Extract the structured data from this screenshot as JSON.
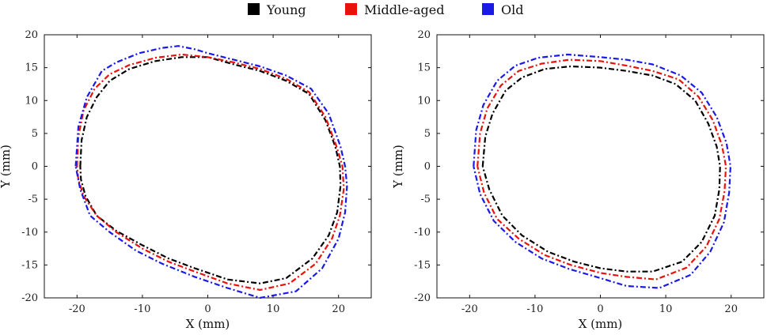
{
  "legend": {
    "items": [
      {
        "label": "Young",
        "color": "#000000"
      },
      {
        "label": "Middle-aged",
        "color": "#e8120c"
      },
      {
        "label": "Old",
        "color": "#1a1ae6"
      }
    ]
  },
  "chart_data": [
    {
      "type": "line",
      "title": "",
      "xlabel": "X (mm)",
      "ylabel": "Y (mm)",
      "xlim": [
        -25,
        25
      ],
      "ylim": [
        -20,
        20
      ],
      "xticks": [
        -20,
        -10,
        0,
        10,
        20
      ],
      "xtick_labels": [
        "-20",
        "-10",
        "0",
        "10",
        "20"
      ],
      "yticks": [
        -20,
        -15,
        -10,
        -5,
        0,
        5,
        10,
        15,
        20
      ],
      "ytick_labels": [
        "-20",
        "-15",
        "-10",
        "-5",
        "0",
        "5",
        "10",
        "15",
        "20"
      ],
      "series": [
        {
          "name": "Young",
          "color": "#000000",
          "x": [
            -19.5,
            -19.3,
            -18.5,
            -17.0,
            -15.0,
            -12.0,
            -8.0,
            -4.0,
            0.0,
            4.0,
            8.0,
            12.0,
            15.5,
            18.0,
            19.5,
            20.2,
            20.3,
            19.8,
            18.5,
            16.0,
            12.0,
            8.0,
            3.0,
            -2.0,
            -6.0,
            -10.0,
            -14.0,
            -17.0,
            -18.7,
            -19.4,
            -19.5
          ],
          "y": [
            0.0,
            4.0,
            7.5,
            10.5,
            13.0,
            14.8,
            16.0,
            16.6,
            16.6,
            15.5,
            14.5,
            13.0,
            11.0,
            7.0,
            3.0,
            0.0,
            -3.0,
            -7.0,
            -10.5,
            -14.0,
            -17.0,
            -17.8,
            -17.2,
            -15.5,
            -14.0,
            -12.0,
            -9.8,
            -7.5,
            -4.5,
            -2.0,
            0.0
          ]
        },
        {
          "name": "Middle-aged",
          "color": "#e8120c",
          "x": [
            -20.0,
            -19.8,
            -19.0,
            -17.3,
            -15.0,
            -12.0,
            -8.0,
            -4.0,
            0.0,
            4.0,
            8.0,
            12.0,
            15.5,
            18.0,
            19.7,
            20.6,
            20.8,
            20.2,
            19.0,
            16.5,
            12.5,
            8.0,
            3.0,
            -2.0,
            -6.0,
            -10.0,
            -14.0,
            -17.0,
            -19.0,
            -19.8,
            -20.0
          ],
          "y": [
            0.0,
            4.5,
            8.5,
            11.8,
            14.0,
            15.4,
            16.5,
            17.0,
            16.6,
            15.8,
            14.8,
            13.3,
            11.3,
            7.5,
            3.0,
            0.0,
            -3.5,
            -7.5,
            -11.0,
            -14.8,
            -17.8,
            -18.8,
            -17.8,
            -16.0,
            -14.5,
            -12.5,
            -10.0,
            -7.5,
            -4.5,
            -2.0,
            0.0
          ]
        },
        {
          "name": "Old",
          "color": "#1a1ae6",
          "x": [
            -20.2,
            -19.8,
            -18.5,
            -16.2,
            -14.0,
            -10.5,
            -7.0,
            -4.5,
            -2.0,
            0.0,
            4.0,
            8.0,
            12.0,
            15.8,
            18.5,
            20.3,
            21.0,
            21.3,
            21.0,
            20.0,
            17.5,
            13.5,
            8.0,
            3.0,
            -2.0,
            -7.0,
            -11.0,
            -15.0,
            -18.0,
            -19.5,
            -20.2
          ],
          "y": [
            0.0,
            6.0,
            10.5,
            14.5,
            15.8,
            17.2,
            18.0,
            18.3,
            17.8,
            17.2,
            16.2,
            15.2,
            13.8,
            11.8,
            8.0,
            3.0,
            0.0,
            -3.0,
            -7.0,
            -11.0,
            -15.5,
            -19.0,
            -20.0,
            -18.5,
            -16.8,
            -14.8,
            -12.8,
            -10.0,
            -7.5,
            -3.5,
            0.0
          ]
        }
      ]
    },
    {
      "type": "line",
      "title": "",
      "xlabel": "X (mm)",
      "ylabel": "Y (mm)",
      "xlim": [
        -25,
        25
      ],
      "ylim": [
        -20,
        20
      ],
      "xticks": [
        -20,
        -10,
        0,
        10,
        20
      ],
      "xtick_labels": [
        "-20",
        "-10",
        "0",
        "10",
        "20"
      ],
      "yticks": [
        -20,
        -15,
        -10,
        -5,
        0,
        5,
        10,
        15,
        20
      ],
      "ytick_labels": [
        "-20",
        "-15",
        "-10",
        "-5",
        "0",
        "5",
        "10",
        "15",
        "20"
      ],
      "series": [
        {
          "name": "Young",
          "color": "#000000",
          "x": [
            -18.0,
            -17.6,
            -16.5,
            -14.5,
            -12.0,
            -8.5,
            -4.5,
            0.0,
            4.0,
            8.0,
            11.5,
            14.5,
            16.5,
            17.8,
            18.3,
            18.2,
            17.5,
            15.5,
            12.5,
            8.0,
            4.0,
            0.0,
            -4.0,
            -8.0,
            -12.0,
            -15.0,
            -17.0,
            -18.0
          ],
          "y": [
            0.0,
            4.5,
            8.0,
            11.5,
            13.5,
            14.8,
            15.2,
            15.0,
            14.5,
            13.8,
            12.5,
            10.0,
            6.5,
            3.0,
            0.0,
            -3.5,
            -7.5,
            -11.5,
            -14.5,
            -16.0,
            -16.0,
            -15.5,
            -14.5,
            -13.0,
            -10.5,
            -7.5,
            -3.5,
            0.0
          ]
        },
        {
          "name": "Middle-aged",
          "color": "#e8120c",
          "x": [
            -18.8,
            -18.4,
            -17.3,
            -15.2,
            -12.5,
            -9.0,
            -4.8,
            0.0,
            4.0,
            8.0,
            12.0,
            15.0,
            17.2,
            18.6,
            19.2,
            19.0,
            18.2,
            16.2,
            13.2,
            8.5,
            4.0,
            0.0,
            -4.5,
            -8.5,
            -12.5,
            -15.8,
            -17.8,
            -18.8
          ],
          "y": [
            0.0,
            5.0,
            8.8,
            12.3,
            14.5,
            15.6,
            16.2,
            16.0,
            15.3,
            14.5,
            13.2,
            10.6,
            7.0,
            3.2,
            0.0,
            -3.8,
            -8.0,
            -12.2,
            -15.4,
            -17.2,
            -16.8,
            -16.2,
            -15.0,
            -13.5,
            -11.0,
            -8.0,
            -4.0,
            0.0
          ]
        },
        {
          "name": "Old",
          "color": "#1a1ae6",
          "x": [
            -19.4,
            -19.0,
            -17.9,
            -15.8,
            -13.0,
            -9.5,
            -5.0,
            0.0,
            4.0,
            8.0,
            12.3,
            15.5,
            17.8,
            19.3,
            19.9,
            19.7,
            18.9,
            16.8,
            13.8,
            9.0,
            4.0,
            0.0,
            -4.8,
            -9.0,
            -13.0,
            -16.3,
            -18.4,
            -19.4
          ],
          "y": [
            0.0,
            5.5,
            9.3,
            13.0,
            15.3,
            16.5,
            17.0,
            16.6,
            16.2,
            15.5,
            13.8,
            11.2,
            7.5,
            3.5,
            0.0,
            -4.0,
            -8.5,
            -13.0,
            -16.5,
            -18.5,
            -18.2,
            -17.0,
            -15.6,
            -14.0,
            -11.5,
            -8.3,
            -4.2,
            0.0
          ]
        }
      ]
    }
  ]
}
